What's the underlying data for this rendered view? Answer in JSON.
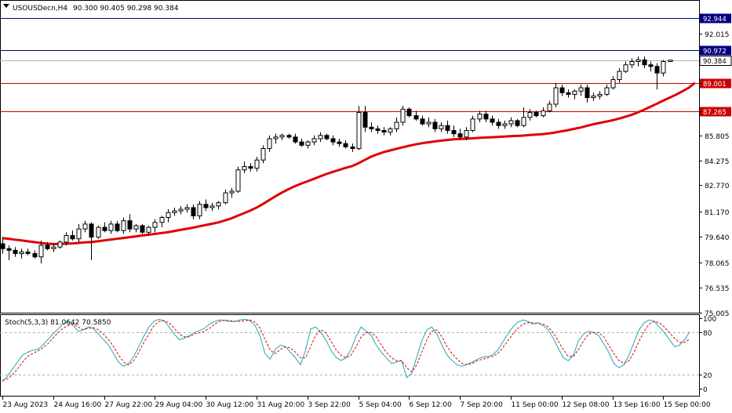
{
  "header": {
    "symbol_label": "USOUSDecn,H4",
    "ohlc_label": "90.300 90.405 90.298 90.384"
  },
  "stoch_label": "Stoch(5,3,3) 81.0642 70.5850",
  "colors": {
    "candle_outline": "#000000",
    "bull_fill": "#ffffff",
    "bear_fill": "#000000",
    "ma_line": "#e00000",
    "resistance_line": "#cc0000",
    "top_line": "#000080",
    "current_price_line": "#b0b0b0",
    "stoch_main": "#20a6b8",
    "stoch_signal": "#e00000",
    "level_dash": "#b0b0b0"
  },
  "chart_data": [
    {
      "type": "candlestick",
      "panel": "price",
      "symbol": "USOUSDecn",
      "timeframe": "H4",
      "ylim": [
        75.0,
        94.0
      ],
      "y_ticks": [
        92.015,
        90.972,
        89.001,
        87.265,
        85.805,
        84.275,
        82.77,
        81.17,
        79.64,
        78.065,
        76.535,
        75.005
      ],
      "x_tick_labels": [
        "23 Aug 2023",
        "24 Aug 16:00",
        "27 Aug 22:00",
        "29 Aug 04:00",
        "30 Aug 12:00",
        "31 Aug 20:00",
        "3 Sep 22:00",
        "5 Sep 04:00",
        "6 Sep 12:00",
        "7 Sep 20:00",
        "11 Sep 00:00",
        "12 Sep 08:00",
        "13 Sep 16:00",
        "15 Sep 00:00"
      ],
      "x_tick_index": [
        0,
        8,
        16,
        24,
        32,
        40,
        48,
        56,
        64,
        72,
        80,
        88,
        96,
        104
      ],
      "horizontal_levels": [
        {
          "value": 92.944,
          "label": "92.944",
          "style": "top"
        },
        {
          "value": 90.972,
          "label": "90.972",
          "style": "top"
        },
        {
          "value": 90.384,
          "label": "90.384",
          "style": "current"
        },
        {
          "value": 89.001,
          "label": "89.001",
          "style": "resistance"
        },
        {
          "value": 87.265,
          "label": "87.265",
          "style": "resistance"
        }
      ],
      "candles": [
        [
          79.2,
          79.6,
          78.6,
          78.9
        ],
        [
          78.9,
          79.1,
          78.2,
          78.8
        ],
        [
          78.8,
          79.0,
          78.4,
          78.6
        ],
        [
          78.6,
          78.9,
          78.3,
          78.7
        ],
        [
          78.7,
          78.9,
          78.5,
          78.6
        ],
        [
          78.6,
          78.8,
          78.3,
          78.4
        ],
        [
          78.4,
          79.4,
          78.0,
          79.1
        ],
        [
          79.1,
          79.3,
          78.8,
          78.9
        ],
        [
          78.9,
          79.2,
          78.7,
          79.0
        ],
        [
          79.0,
          79.4,
          78.9,
          79.3
        ],
        [
          79.3,
          79.9,
          79.1,
          79.7
        ],
        [
          79.7,
          80.0,
          79.4,
          79.5
        ],
        [
          79.5,
          80.4,
          79.3,
          80.1
        ],
        [
          80.1,
          80.6,
          79.9,
          80.4
        ],
        [
          80.4,
          80.5,
          78.2,
          79.6
        ],
        [
          79.6,
          80.3,
          79.5,
          80.2
        ],
        [
          80.2,
          80.5,
          79.9,
          80.0
        ],
        [
          80.0,
          80.6,
          79.8,
          80.4
        ],
        [
          80.4,
          80.6,
          79.9,
          80.0
        ],
        [
          80.0,
          80.8,
          79.8,
          80.6
        ],
        [
          80.6,
          81.0,
          79.9,
          80.1
        ],
        [
          80.1,
          80.4,
          79.9,
          80.3
        ],
        [
          80.3,
          80.4,
          79.8,
          79.9
        ],
        [
          79.9,
          80.3,
          79.7,
          80.2
        ],
        [
          80.2,
          80.7,
          79.9,
          80.5
        ],
        [
          80.5,
          80.9,
          80.2,
          80.8
        ],
        [
          80.8,
          81.3,
          80.5,
          81.1
        ],
        [
          81.1,
          81.4,
          80.9,
          81.2
        ],
        [
          81.2,
          81.5,
          81.0,
          81.3
        ],
        [
          81.3,
          81.6,
          81.1,
          81.4
        ],
        [
          81.4,
          81.6,
          80.7,
          80.9
        ],
        [
          80.9,
          81.8,
          80.7,
          81.6
        ],
        [
          81.6,
          81.9,
          81.2,
          81.4
        ],
        [
          81.4,
          81.7,
          81.2,
          81.5
        ],
        [
          81.5,
          81.8,
          81.3,
          81.7
        ],
        [
          81.7,
          82.5,
          81.6,
          82.3
        ],
        [
          82.3,
          82.6,
          82.0,
          82.4
        ],
        [
          82.4,
          83.9,
          82.3,
          83.7
        ],
        [
          83.7,
          84.2,
          83.5,
          83.9
        ],
        [
          83.9,
          84.1,
          83.6,
          83.8
        ],
        [
          83.8,
          84.5,
          83.6,
          84.3
        ],
        [
          84.3,
          85.2,
          84.1,
          85.0
        ],
        [
          85.0,
          85.8,
          84.8,
          85.6
        ],
        [
          85.6,
          85.9,
          85.3,
          85.7
        ],
        [
          85.7,
          85.9,
          85.5,
          85.8
        ],
        [
          85.8,
          85.9,
          85.6,
          85.7
        ],
        [
          85.7,
          85.9,
          85.3,
          85.4
        ],
        [
          85.4,
          85.6,
          85.1,
          85.2
        ],
        [
          85.2,
          85.5,
          85.0,
          85.4
        ],
        [
          85.4,
          85.8,
          85.2,
          85.6
        ],
        [
          85.6,
          86.0,
          85.4,
          85.8
        ],
        [
          85.8,
          85.9,
          85.5,
          85.6
        ],
        [
          85.6,
          85.8,
          85.2,
          85.4
        ],
        [
          85.4,
          85.6,
          85.1,
          85.3
        ],
        [
          85.3,
          85.5,
          85.0,
          85.1
        ],
        [
          85.1,
          85.3,
          84.8,
          85.0
        ],
        [
          85.0,
          87.6,
          84.9,
          87.2
        ],
        [
          87.2,
          87.6,
          86.0,
          86.3
        ],
        [
          86.3,
          86.6,
          86.0,
          86.2
        ],
        [
          86.2,
          86.4,
          85.9,
          86.1
        ],
        [
          86.1,
          86.3,
          85.8,
          86.0
        ],
        [
          86.0,
          86.3,
          85.8,
          86.2
        ],
        [
          86.2,
          86.9,
          86.0,
          86.6
        ],
        [
          86.6,
          87.6,
          86.4,
          87.4
        ],
        [
          87.4,
          87.5,
          86.9,
          87.0
        ],
        [
          87.0,
          87.3,
          86.7,
          86.8
        ],
        [
          86.8,
          87.0,
          86.4,
          86.5
        ],
        [
          86.5,
          86.9,
          86.3,
          86.6
        ],
        [
          86.6,
          86.8,
          86.0,
          86.2
        ],
        [
          86.2,
          86.6,
          86.0,
          86.4
        ],
        [
          86.4,
          86.7,
          85.9,
          86.1
        ],
        [
          86.1,
          86.4,
          85.7,
          85.9
        ],
        [
          85.9,
          86.2,
          85.6,
          85.7
        ],
        [
          85.7,
          86.3,
          85.5,
          86.1
        ],
        [
          86.1,
          87.0,
          86.0,
          86.8
        ],
        [
          86.8,
          87.3,
          86.6,
          87.1
        ],
        [
          87.1,
          87.3,
          86.6,
          86.8
        ],
        [
          86.8,
          87.0,
          86.4,
          86.6
        ],
        [
          86.6,
          86.8,
          86.2,
          86.4
        ],
        [
          86.4,
          86.7,
          86.2,
          86.5
        ],
        [
          86.5,
          86.9,
          86.3,
          86.7
        ],
        [
          86.7,
          86.8,
          86.3,
          86.4
        ],
        [
          86.4,
          87.5,
          86.3,
          86.9
        ],
        [
          86.9,
          87.4,
          86.7,
          87.2
        ],
        [
          87.2,
          87.3,
          86.9,
          87.0
        ],
        [
          87.0,
          87.5,
          86.9,
          87.3
        ],
        [
          87.3,
          87.9,
          87.2,
          87.7
        ],
        [
          87.7,
          89.0,
          87.5,
          88.7
        ],
        [
          88.7,
          88.9,
          88.2,
          88.4
        ],
        [
          88.4,
          88.6,
          88.1,
          88.3
        ],
        [
          88.3,
          88.6,
          88.0,
          88.5
        ],
        [
          88.5,
          88.9,
          88.2,
          88.7
        ],
        [
          88.7,
          88.9,
          87.8,
          88.1
        ],
        [
          88.1,
          88.4,
          87.9,
          88.2
        ],
        [
          88.2,
          88.5,
          88.0,
          88.3
        ],
        [
          88.3,
          88.9,
          88.2,
          88.7
        ],
        [
          88.7,
          89.4,
          88.6,
          89.2
        ],
        [
          89.2,
          89.9,
          89.0,
          89.7
        ],
        [
          89.7,
          90.3,
          89.6,
          90.1
        ],
        [
          90.1,
          90.5,
          89.9,
          90.3
        ],
        [
          90.3,
          90.6,
          90.0,
          90.4
        ],
        [
          90.4,
          90.6,
          89.9,
          90.1
        ],
        [
          90.1,
          90.3,
          89.7,
          90.0
        ],
        [
          90.0,
          90.2,
          88.6,
          89.6
        ],
        [
          89.6,
          90.4,
          89.4,
          90.3
        ],
        [
          90.3,
          90.405,
          90.298,
          90.384
        ]
      ],
      "moving_average": [
        79.55,
        79.5,
        79.45,
        79.4,
        79.35,
        79.3,
        79.25,
        79.2,
        79.18,
        79.18,
        79.2,
        79.22,
        79.25,
        79.28,
        79.3,
        79.35,
        79.4,
        79.45,
        79.5,
        79.55,
        79.6,
        79.65,
        79.7,
        79.75,
        79.8,
        79.85,
        79.9,
        79.97,
        80.04,
        80.11,
        80.18,
        80.26,
        80.34,
        80.42,
        80.5,
        80.62,
        80.74,
        80.9,
        81.06,
        81.22,
        81.4,
        81.62,
        81.86,
        82.1,
        82.32,
        82.52,
        82.7,
        82.86,
        83.0,
        83.15,
        83.3,
        83.45,
        83.58,
        83.7,
        83.82,
        83.92,
        84.1,
        84.3,
        84.5,
        84.65,
        84.78,
        84.88,
        84.98,
        85.08,
        85.17,
        85.25,
        85.32,
        85.38,
        85.43,
        85.48,
        85.52,
        85.56,
        85.58,
        85.6,
        85.62,
        85.65,
        85.67,
        85.69,
        85.71,
        85.73,
        85.75,
        85.77,
        85.79,
        85.82,
        85.85,
        85.88,
        85.92,
        85.98,
        86.05,
        86.12,
        86.2,
        86.28,
        86.38,
        86.48,
        86.56,
        86.64,
        86.72,
        86.82,
        86.93,
        87.05,
        87.2,
        87.37,
        87.55,
        87.73,
        87.92,
        88.1,
        88.28,
        88.48,
        88.7,
        89.0
      ]
    },
    {
      "type": "line",
      "panel": "stochastic",
      "name": "Stoch(5,3,3)",
      "ylim": [
        -10,
        105
      ],
      "y_ticks": [
        100,
        80,
        20,
        0
      ],
      "levels": [
        80,
        20
      ],
      "series": [
        {
          "name": "main",
          "values": [
            10,
            18,
            28,
            38,
            48,
            52,
            55,
            56,
            62,
            70,
            78,
            85,
            92,
            96,
            90,
            82,
            84,
            88,
            86,
            78,
            70,
            62,
            50,
            38,
            32,
            36,
            46,
            60,
            75,
            88,
            96,
            99,
            97,
            88,
            78,
            70,
            72,
            76,
            80,
            83,
            86,
            92,
            96,
            98,
            97,
            96,
            96,
            98,
            99,
            97,
            90,
            75,
            50,
            42,
            56,
            62,
            60,
            52,
            44,
            34,
            55,
            85,
            88,
            80,
            70,
            55,
            45,
            40,
            44,
            56,
            75,
            88,
            82,
            76,
            62,
            52,
            44,
            36,
            38,
            40,
            16,
            22,
            45,
            68,
            84,
            88,
            78,
            62,
            48,
            40,
            34,
            32,
            35,
            38,
            42,
            45,
            46,
            48,
            55,
            66,
            78,
            88,
            95,
            98,
            96,
            92,
            94,
            90,
            84,
            72,
            58,
            44,
            40,
            48,
            68,
            78,
            82,
            80,
            76,
            64,
            52,
            36,
            30,
            34,
            48,
            66,
            84,
            94,
            98,
            96,
            88,
            80,
            70,
            60,
            62,
            70,
            81
          ]
        },
        {
          "name": "signal",
          "values": [
            12,
            14,
            20,
            28,
            38,
            46,
            50,
            54,
            58,
            64,
            72,
            80,
            86,
            90,
            92,
            88,
            84,
            86,
            87,
            84,
            78,
            70,
            60,
            48,
            38,
            34,
            40,
            52,
            66,
            78,
            90,
            96,
            97,
            94,
            86,
            78,
            74,
            74,
            78,
            80,
            82,
            86,
            92,
            96,
            98,
            97,
            96,
            96,
            97,
            98,
            95,
            86,
            70,
            55,
            50,
            56,
            60,
            58,
            52,
            44,
            44,
            60,
            76,
            84,
            80,
            68,
            56,
            48,
            44,
            48,
            60,
            74,
            80,
            80,
            74,
            62,
            52,
            44,
            40,
            40,
            30,
            24,
            34,
            52,
            70,
            82,
            84,
            74,
            60,
            50,
            42,
            36,
            34,
            36,
            40,
            42,
            44,
            46,
            50,
            58,
            68,
            78,
            86,
            92,
            94,
            94,
            93,
            92,
            88,
            80,
            68,
            56,
            46,
            46,
            56,
            68,
            78,
            80,
            80,
            74,
            62,
            50,
            40,
            36,
            40,
            52,
            68,
            82,
            92,
            96,
            94,
            88,
            80,
            72,
            66,
            66,
            70.585
          ]
        }
      ]
    }
  ]
}
